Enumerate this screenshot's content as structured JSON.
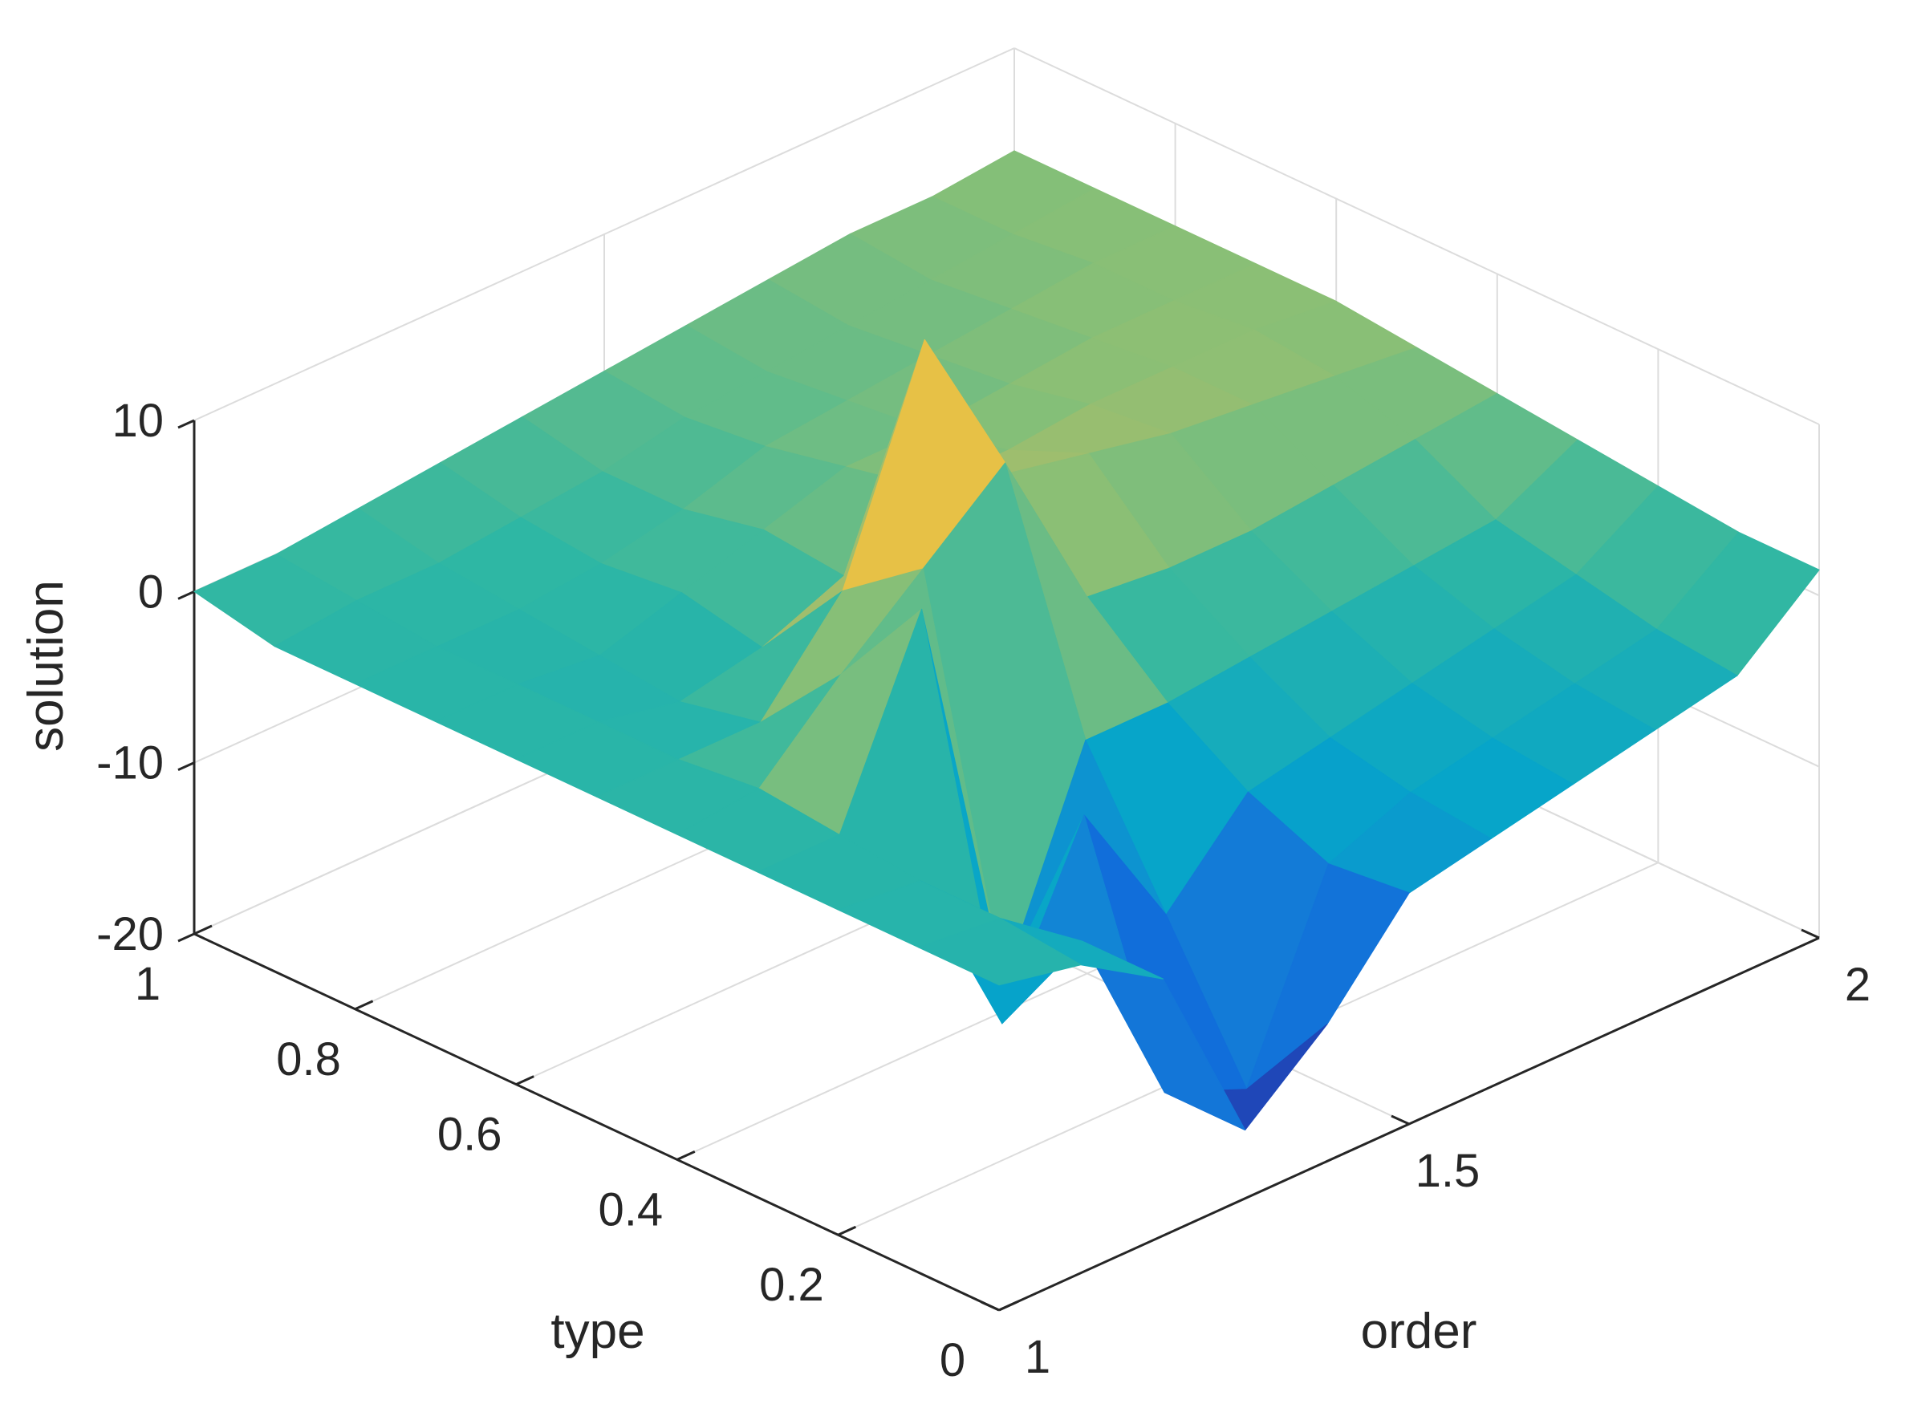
{
  "chart_data": {
    "type": "surface",
    "xlabel": "order",
    "ylabel": "type",
    "zlabel": "solution",
    "xlim": [
      1,
      2
    ],
    "ylim": [
      0,
      1
    ],
    "zlim": [
      -20,
      10
    ],
    "xticks": [
      {
        "value": 1,
        "label": "1"
      },
      {
        "value": 1.5,
        "label": "1.5"
      },
      {
        "value": 2,
        "label": "2"
      }
    ],
    "yticks": [
      {
        "value": 0,
        "label": "0"
      },
      {
        "value": 0.2,
        "label": "0.2"
      },
      {
        "value": 0.4,
        "label": "0.4"
      },
      {
        "value": 0.6,
        "label": "0.6"
      },
      {
        "value": 0.8,
        "label": "0.8"
      },
      {
        "value": 1,
        "label": "1"
      }
    ],
    "zticks": [
      {
        "value": -20,
        "label": "-20"
      },
      {
        "value": -10,
        "label": "-10"
      },
      {
        "value": 0,
        "label": "0"
      },
      {
        "value": 10,
        "label": "10"
      }
    ],
    "grid": true,
    "colormap": "parula",
    "colormap_stops": [
      "#352a87",
      "#0f5cdd",
      "#1481d6",
      "#06a4ca",
      "#2eb7a4",
      "#87bf77",
      "#d1bb59",
      "#fec832",
      "#f9fb0e"
    ],
    "x": [
      1.0,
      1.1,
      1.2,
      1.3,
      1.4,
      1.5,
      1.6,
      1.7,
      1.8,
      1.9,
      2.0
    ],
    "y": [
      0.0,
      0.1,
      0.2,
      0.3,
      0.4,
      0.5,
      0.6,
      0.7,
      0.8,
      0.9,
      1.0
    ],
    "z": [
      [
        -1.0,
        -2.0,
        -5.0,
        -16.0,
        -12.0,
        -6.5,
        -5.5,
        -4.5,
        -3.5,
        -2.5,
        1.5
      ],
      [
        -1.0,
        -1.5,
        -5.0,
        -16.0,
        -18.0,
        -7.0,
        -5.0,
        -4.0,
        -3.0,
        -2.0,
        1.5
      ],
      [
        -1.0,
        -1.5,
        -12.0,
        -2.0,
        -10.0,
        -5.0,
        -4.0,
        -3.0,
        -2.0,
        -1.0,
        2.0
      ],
      [
        -1.0,
        -1.0,
        10.0,
        -14.0,
        -2.0,
        -2.0,
        -1.5,
        -1.0,
        -0.5,
        0.0,
        2.5
      ],
      [
        -1.0,
        -0.5,
        4.0,
        8.0,
        12.0,
        2.0,
        1.5,
        1.5,
        2.0,
        2.5,
        3.0
      ],
      [
        -1.0,
        -1.0,
        -1.0,
        4.5,
        17.0,
        7.0,
        6.0,
        5.0,
        4.5,
        4.0,
        3.5
      ],
      [
        -1.0,
        -1.0,
        -2.0,
        -1.0,
        1.0,
        4.0,
        4.0,
        4.5,
        4.5,
        4.5,
        4.0
      ],
      [
        -1.0,
        -1.0,
        -1.5,
        0.0,
        1.5,
        3.0,
        3.0,
        3.5,
        4.0,
        4.0,
        4.0
      ],
      [
        -1.0,
        -1.0,
        -1.0,
        -0.5,
        0.5,
        2.0,
        2.5,
        3.0,
        3.5,
        4.0,
        4.0
      ],
      [
        -1.0,
        -0.5,
        -0.5,
        0.0,
        0.5,
        1.5,
        2.0,
        2.5,
        3.0,
        3.5,
        4.0
      ],
      [
        0.0,
        0.0,
        0.5,
        1.0,
        1.5,
        2.0,
        2.5,
        3.0,
        3.5,
        3.5,
        4.0
      ]
    ]
  }
}
